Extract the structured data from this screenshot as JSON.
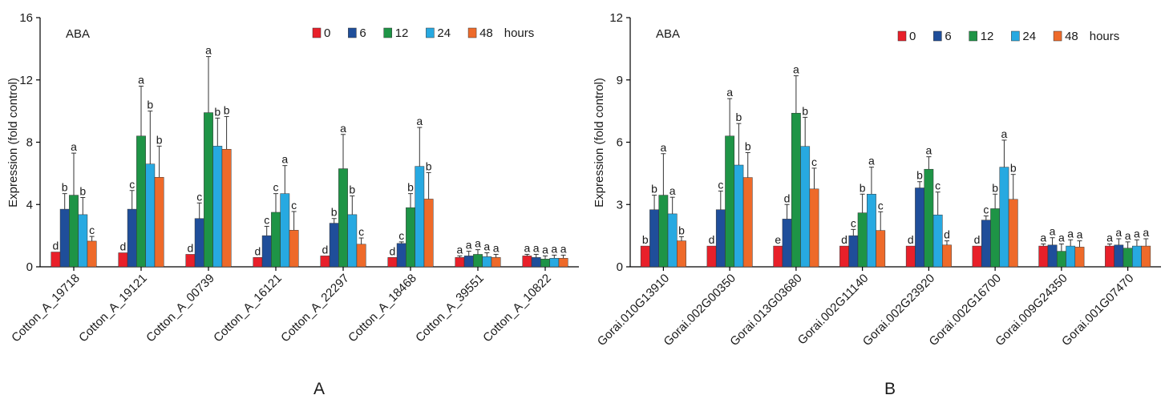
{
  "colors": {
    "0": "#e8202a",
    "6": "#1f4e9a",
    "12": "#1e9446",
    "24": "#27a9e1",
    "48": "#ee6a2a"
  },
  "chart_data": [
    {
      "type": "bar",
      "panel_label": "A",
      "annotation": "ABA",
      "ylabel": "Expression (fold control)",
      "xlabel": "",
      "ylim": [
        0,
        16
      ],
      "yticks": [
        0,
        4,
        8,
        12,
        16
      ],
      "legend_placement": "top-right",
      "legend_unit": "hours",
      "categories": [
        "Cotton_A_19718",
        "Cotton_A_19121",
        "Cotton_A_00739",
        "Cotton_A_16121",
        "Cotton_A_22297",
        "Cotton_A_18468",
        "Cotton_A_39551",
        "Cotton_A_10822"
      ],
      "series": [
        {
          "name": "0",
          "values": [
            0.95,
            0.9,
            0.8,
            0.6,
            0.7,
            0.6,
            0.6,
            0.7
          ],
          "errors": [
            0,
            0,
            0,
            0,
            0,
            0,
            0.1,
            0.1
          ],
          "letters": [
            "d",
            "d",
            "d",
            "d",
            "d",
            "d",
            "a",
            "a"
          ]
        },
        {
          "name": "6",
          "values": [
            3.7,
            3.7,
            3.1,
            2.0,
            2.8,
            1.5,
            0.7,
            0.6
          ],
          "errors": [
            1.0,
            1.2,
            1.0,
            0.6,
            0.3,
            0.1,
            0.3,
            0.2
          ],
          "letters": [
            "b",
            "c",
            "c",
            "c",
            "b",
            "c",
            "a",
            "a"
          ]
        },
        {
          "name": "12",
          "values": [
            4.6,
            8.4,
            9.9,
            3.5,
            6.3,
            3.8,
            0.8,
            0.5
          ],
          "errors": [
            2.7,
            3.2,
            3.6,
            1.2,
            2.2,
            0.9,
            0.3,
            0.2
          ],
          "letters": [
            "a",
            "a",
            "a",
            "c",
            "a",
            "b",
            "a",
            "a"
          ]
        },
        {
          "name": "24",
          "values": [
            3.35,
            6.6,
            7.75,
            4.7,
            3.35,
            6.45,
            0.65,
            0.55
          ],
          "errors": [
            1.1,
            3.4,
            1.8,
            1.8,
            1.2,
            2.5,
            0.25,
            0.2
          ],
          "letters": [
            "b",
            "b",
            "b",
            "a",
            "b",
            "a",
            "a",
            "a"
          ]
        },
        {
          "name": "48",
          "values": [
            1.65,
            5.75,
            7.55,
            2.35,
            1.45,
            4.35,
            0.6,
            0.55
          ],
          "errors": [
            0.3,
            2.0,
            2.1,
            1.2,
            0.4,
            1.7,
            0.2,
            0.2
          ],
          "letters": [
            "c",
            "b",
            "b",
            "c",
            "c",
            "b",
            "a",
            "a"
          ]
        }
      ]
    },
    {
      "type": "bar",
      "panel_label": "B",
      "annotation": "ABA",
      "ylabel": "Expression (fold control)",
      "xlabel": "",
      "ylim": [
        0,
        12
      ],
      "yticks": [
        0,
        3,
        6,
        9,
        12
      ],
      "legend_placement": "top-right",
      "legend_unit": "hours",
      "categories": [
        "Gorai.010G13910",
        "Gorai.002G00350",
        "Gorai.013G03680",
        "Gorai.002G11140",
        "Gorai.002G23920",
        "Gorai.002G16700",
        "Gorai.009G24350",
        "Gorai.001G07470"
      ],
      "series": [
        {
          "name": "0",
          "values": [
            1.0,
            1.0,
            1.0,
            1.0,
            1.0,
            1.0,
            1.0,
            1.0
          ],
          "errors": [
            0,
            0,
            0,
            0,
            0,
            0,
            0.1,
            0.1
          ],
          "letters": [
            "b",
            "d",
            "e",
            "d",
            "d",
            "d",
            "a",
            "a"
          ]
        },
        {
          "name": "6",
          "values": [
            2.75,
            2.75,
            2.3,
            1.5,
            3.8,
            2.25,
            1.05,
            1.05
          ],
          "errors": [
            0.7,
            0.9,
            0.7,
            0.3,
            0.3,
            0.2,
            0.35,
            0.3
          ],
          "letters": [
            "b",
            "c",
            "d",
            "c",
            "b",
            "c",
            "a",
            "a"
          ]
        },
        {
          "name": "12",
          "values": [
            3.45,
            6.3,
            7.4,
            2.6,
            4.7,
            2.8,
            0.75,
            0.9
          ],
          "errors": [
            2.0,
            1.8,
            1.8,
            0.9,
            0.6,
            0.7,
            0.35,
            0.3
          ],
          "letters": [
            "a",
            "a",
            "a",
            "b",
            "a",
            "b",
            "a",
            "a"
          ]
        },
        {
          "name": "24",
          "values": [
            2.55,
            4.9,
            5.8,
            3.5,
            2.5,
            4.8,
            1.0,
            1.0
          ],
          "errors": [
            0.8,
            2.0,
            1.4,
            1.3,
            1.1,
            1.3,
            0.3,
            0.3
          ],
          "letters": [
            "a",
            "b",
            "b",
            "a",
            "c",
            "a",
            "a",
            "a"
          ]
        },
        {
          "name": "48",
          "values": [
            1.25,
            4.3,
            3.75,
            1.75,
            1.05,
            3.25,
            0.95,
            1.0
          ],
          "errors": [
            0.2,
            1.2,
            1.0,
            0.9,
            0.2,
            1.2,
            0.3,
            0.35
          ],
          "letters": [
            "b",
            "b",
            "c",
            "c",
            "d",
            "b",
            "a",
            "a"
          ]
        }
      ]
    }
  ]
}
